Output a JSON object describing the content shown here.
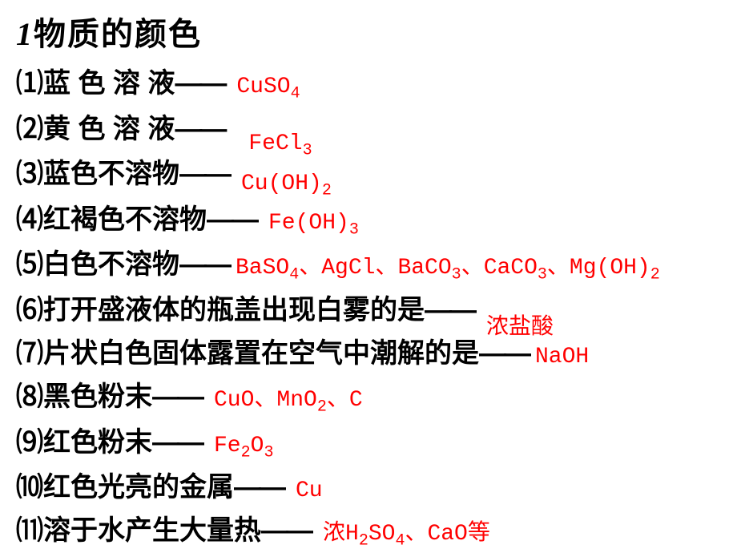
{
  "title_num": "1",
  "title_text": "物质的颜色",
  "colors": {
    "text_black": "#000000",
    "answer_red": "#ff0000",
    "background": "#ffffff"
  },
  "fonts": {
    "title_size": 40,
    "label_size": 34,
    "answer_size": 28,
    "sub_size": 20
  },
  "items": [
    {
      "num": "⑴",
      "label": "蓝 色 溶 液",
      "dash": "——",
      "answer_html": "CuSO<sub>4</sub>"
    },
    {
      "num": "⑵",
      "label": "黄 色 溶 液",
      "dash": "——",
      "answer_html": "FeCl<sub>3</sub>"
    },
    {
      "num": "⑶",
      "label": "蓝色不溶物",
      "dash": "——",
      "answer_html": "Cu(OH)<sub>2</sub>"
    },
    {
      "num": "⑷",
      "label": "红褐色不溶物",
      "dash": "——",
      "answer_html": "Fe(OH)<sub>3</sub>"
    },
    {
      "num": "⑸",
      "label": "白色不溶物",
      "dash": "——",
      "answer_html": "BaSO<sub>4</sub>、AgCl、BaCO<sub>3</sub>、CaCO<sub>3</sub>、Mg(OH)<sub>2</sub>"
    },
    {
      "num": "⑹",
      "label": "打开盛液体的瓶盖出现白雾的是",
      "dash": "——",
      "answer_html": "浓盐酸"
    },
    {
      "num": "⑺",
      "label": "片状白色固体露置在空气中潮解的是",
      "dash": "——",
      "answer_html": "NaOH"
    },
    {
      "num": "⑻",
      "label": "黑色粉末",
      "dash": "——",
      "answer_html": "CuO、MnO<sub>2</sub>、C"
    },
    {
      "num": "⑼",
      "label": "红色粉末",
      "dash": "——",
      "answer_html": "Fe<sub>2</sub>O<sub>3</sub>"
    },
    {
      "num": "⑽",
      "label": "红色光亮的金属",
      "dash": "——",
      "answer_html": "Cu"
    },
    {
      "num": "⑾",
      "label": "溶于水产生大量热",
      "dash": "——",
      "answer_html": "浓H<sub>2</sub>SO<sub>4</sub>、CaO等"
    }
  ]
}
